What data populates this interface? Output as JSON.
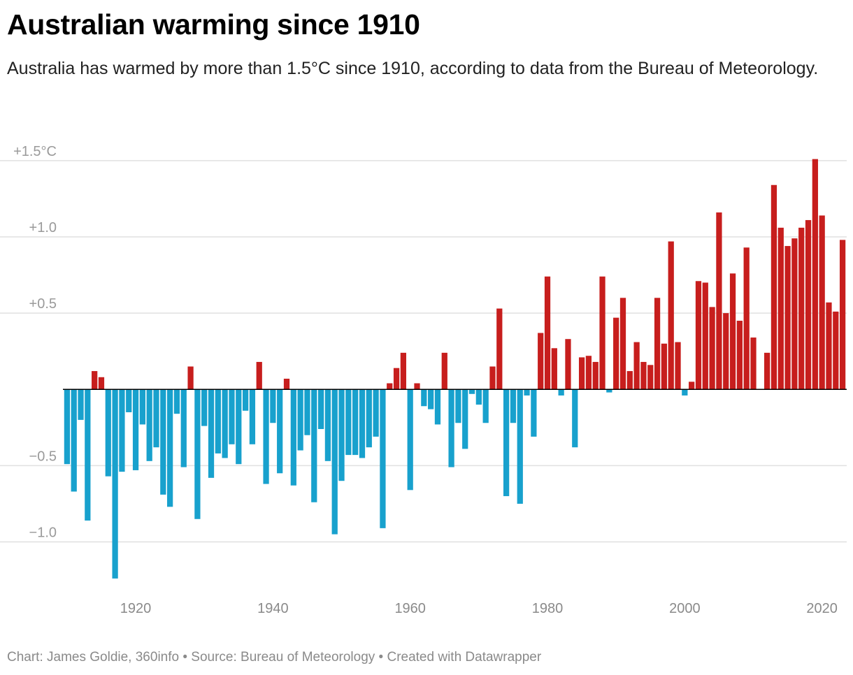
{
  "chart_data": {
    "type": "bar",
    "title": "Australian warming since 1910",
    "subtitle": "Australia has warmed by more than 1.5°C since 1910, according to data from the Bureau of Meteorology.",
    "source": "Chart: James Goldie, 360info • Source: Bureau of Meteorology • Created with Datawrapper",
    "ylim": [
      -1.3,
      1.6
    ],
    "xlim": [
      1909.4,
      2023.6
    ],
    "y_ticks": [
      {
        "value": 1.5,
        "label": "+1.5°C"
      },
      {
        "value": 1.0,
        "label": "+1.0"
      },
      {
        "value": 0.5,
        "label": "+0.5"
      },
      {
        "value": -0.5,
        "label": "−0.5"
      },
      {
        "value": -1.0,
        "label": "−1.0"
      }
    ],
    "x_ticks": [
      {
        "value": 1920,
        "label": "1920"
      },
      {
        "value": 1940,
        "label": "1940"
      },
      {
        "value": 1960,
        "label": "1960"
      },
      {
        "value": 1980,
        "label": "1980"
      },
      {
        "value": 2000,
        "label": "2000"
      },
      {
        "value": 2020,
        "label": "2020"
      }
    ],
    "grid": true,
    "colors": {
      "positive": "#c71e1d",
      "negative": "#18a1cd",
      "grid": "#e0e0e0",
      "baseline": "#000000"
    },
    "years": [
      1910,
      1911,
      1912,
      1913,
      1914,
      1915,
      1916,
      1917,
      1918,
      1919,
      1920,
      1921,
      1922,
      1923,
      1924,
      1925,
      1926,
      1927,
      1928,
      1929,
      1930,
      1931,
      1932,
      1933,
      1934,
      1935,
      1936,
      1937,
      1938,
      1939,
      1940,
      1941,
      1942,
      1943,
      1944,
      1945,
      1946,
      1947,
      1948,
      1949,
      1950,
      1951,
      1952,
      1953,
      1954,
      1955,
      1956,
      1957,
      1958,
      1959,
      1960,
      1961,
      1962,
      1963,
      1964,
      1965,
      1966,
      1967,
      1968,
      1969,
      1970,
      1971,
      1972,
      1973,
      1974,
      1975,
      1976,
      1977,
      1978,
      1979,
      1980,
      1981,
      1982,
      1983,
      1984,
      1985,
      1986,
      1987,
      1988,
      1989,
      1990,
      1991,
      1992,
      1993,
      1994,
      1995,
      1996,
      1997,
      1998,
      1999,
      2000,
      2001,
      2002,
      2003,
      2004,
      2005,
      2006,
      2007,
      2008,
      2009,
      2010,
      2011,
      2012,
      2013,
      2014,
      2015,
      2016,
      2017,
      2018,
      2019,
      2020,
      2021,
      2022,
      2023
    ],
    "values": [
      -0.49,
      -0.67,
      -0.2,
      -0.86,
      0.12,
      0.08,
      -0.57,
      -1.24,
      -0.54,
      -0.15,
      -0.53,
      -0.23,
      -0.47,
      -0.38,
      -0.69,
      -0.77,
      -0.16,
      -0.51,
      0.15,
      -0.85,
      -0.24,
      -0.58,
      -0.42,
      -0.45,
      -0.36,
      -0.49,
      -0.14,
      -0.36,
      0.18,
      -0.62,
      -0.22,
      -0.55,
      0.07,
      -0.63,
      -0.4,
      -0.3,
      -0.74,
      -0.26,
      -0.47,
      -0.95,
      -0.6,
      -0.43,
      -0.43,
      -0.45,
      -0.38,
      -0.31,
      -0.91,
      0.04,
      0.14,
      0.24,
      -0.66,
      0.04,
      -0.11,
      -0.13,
      -0.23,
      0.24,
      -0.51,
      -0.22,
      -0.39,
      -0.03,
      -0.1,
      -0.22,
      0.15,
      0.53,
      -0.7,
      -0.22,
      -0.75,
      -0.04,
      -0.31,
      0.37,
      0.74,
      0.27,
      -0.04,
      0.33,
      -0.38,
      0.21,
      0.22,
      0.18,
      0.74,
      -0.02,
      0.47,
      0.6,
      0.12,
      0.31,
      0.18,
      0.16,
      0.6,
      0.3,
      0.97,
      0.31,
      -0.04,
      0.05,
      0.71,
      0.7,
      0.54,
      1.16,
      0.5,
      0.76,
      0.45,
      0.93,
      0.34,
      0.0,
      0.24,
      1.34,
      1.06,
      0.94,
      0.99,
      1.06,
      1.11,
      1.51,
      1.14,
      0.57,
      0.51,
      0.98
    ]
  }
}
